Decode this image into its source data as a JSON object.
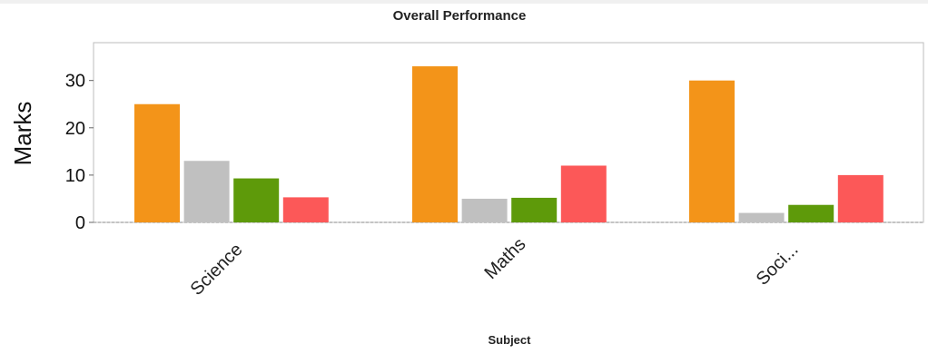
{
  "chart_data": {
    "type": "bar",
    "title": "Overall Performance",
    "xlabel": "Subject",
    "ylabel": "Marks",
    "categories": [
      "Science",
      "Maths",
      "Soci..."
    ],
    "series": [
      {
        "values": [
          25,
          33,
          30
        ],
        "color": "#f39419"
      },
      {
        "values": [
          13,
          5,
          2
        ],
        "color": "#c0c0c0"
      },
      {
        "values": [
          9.3,
          5.2,
          3.7
        ],
        "color": "#5e9a0a"
      },
      {
        "values": [
          5.3,
          12,
          10
        ],
        "color": "#fc5858"
      }
    ],
    "ylim": [
      0,
      38
    ],
    "yticks": [
      0,
      10,
      20,
      30
    ],
    "grid": false,
    "legend": "none"
  }
}
